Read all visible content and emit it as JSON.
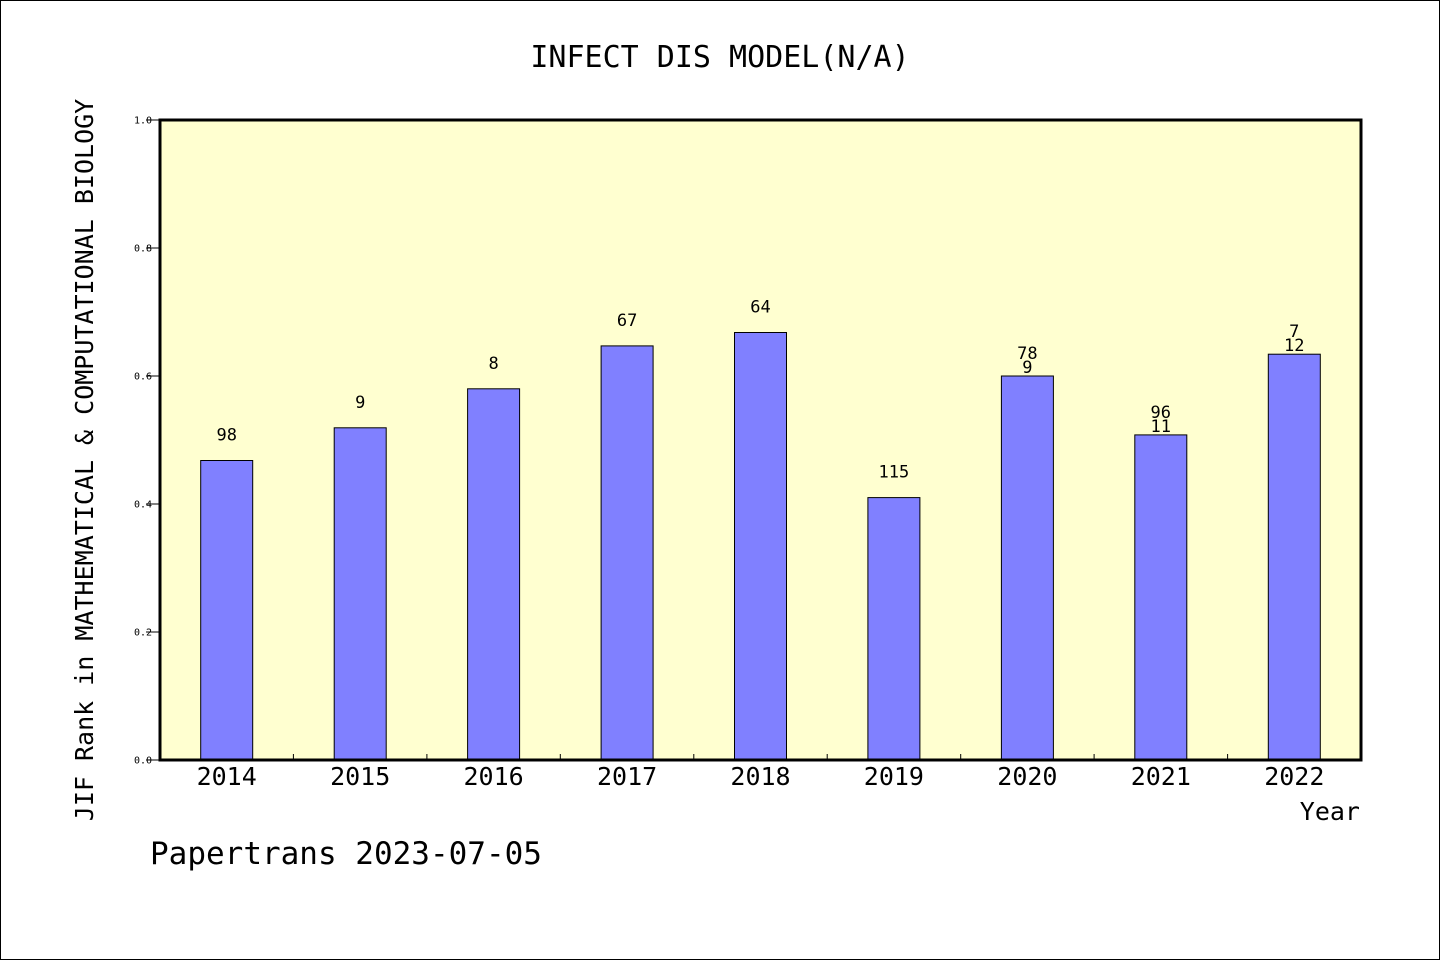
{
  "chart_data": {
    "type": "bar",
    "title": "INFECT DIS MODEL(N/A)",
    "xlabel": "Year",
    "ylabel": "JIF Rank in MATHEMATICAL & COMPUTATIONAL BIOLOGY",
    "ylim": [
      0,
      1.0
    ],
    "yticks": [
      "0.0",
      "0.2",
      "0.4",
      "0.6",
      "0.8",
      "1.0"
    ],
    "categories": [
      "2014",
      "2015",
      "2016",
      "2017",
      "2018",
      "2019",
      "2020",
      "2021",
      "2022"
    ],
    "values": [
      0.468,
      0.519,
      0.58,
      0.647,
      0.668,
      0.41,
      0.6,
      0.508,
      0.634
    ],
    "rank_labels": [
      [
        "98"
      ],
      [
        "9"
      ],
      [
        "8"
      ],
      [
        "67"
      ],
      [
        "64"
      ],
      [
        "115"
      ],
      [
        "78",
        "9"
      ],
      [
        "96",
        "11"
      ],
      [
        "7",
        "12"
      ]
    ],
    "grid": false,
    "bar_color": "#8080ff",
    "plot_background": "#ffffd0"
  },
  "footer": "Papertrans 2023-07-05"
}
